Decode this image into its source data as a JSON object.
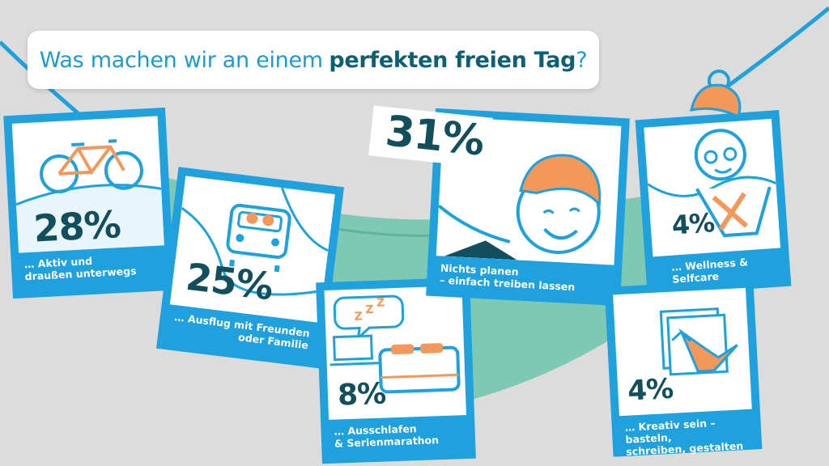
{
  "title": {
    "before": "Was machen wir an einem",
    "highlight": "perfekten freien Tag",
    "after": "?"
  },
  "colors": {
    "background": "#dcdcdc",
    "card_blue": "#1ea1dd",
    "dark_teal": "#124e5c",
    "accent_orange": "#f4975a",
    "hammock_green": "#7fc9b4"
  },
  "cards": [
    {
      "percent": "28%",
      "label_line1": "… Aktiv und",
      "label_line2": "draußen unterwegs",
      "icon": "bicycle-icon"
    },
    {
      "percent": "25%",
      "label_line1": "… Ausflug mit Freunden",
      "label_line2": "oder Familie",
      "icon": "car-icon"
    },
    {
      "percent": "8%",
      "label_line1": "… Ausschlafen",
      "label_line2": "& Serienmarathon",
      "icon": "bed-icon"
    },
    {
      "percent": "31%",
      "label_line1": "Nichts planen",
      "label_line2": "– einfach treiben lassen",
      "icon": "waving-person-icon"
    },
    {
      "percent": "4%",
      "label_line1": "… Wellness & Selfcare",
      "label_line2": "",
      "icon": "wellness-person-icon"
    },
    {
      "percent": "4%",
      "label_line1": "… Kreativ sein – basteln,",
      "label_line2": "schreiben, gestalten",
      "icon": "origami-crane-icon"
    }
  ]
}
